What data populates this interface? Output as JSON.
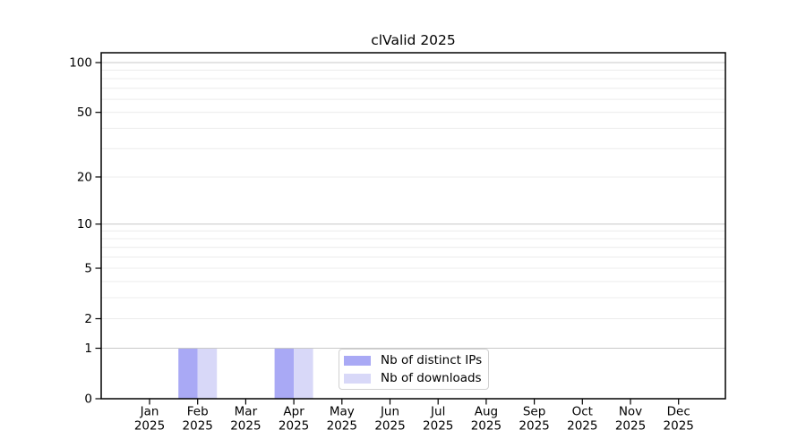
{
  "title": "clValid 2025",
  "chart_data": {
    "type": "bar",
    "title": "clValid 2025",
    "categories": [
      "Jan 2025",
      "Feb 2025",
      "Mar 2025",
      "Apr 2025",
      "May 2025",
      "Jun 2025",
      "Jul 2025",
      "Aug 2025",
      "Sep 2025",
      "Oct 2025",
      "Nov 2025",
      "Dec 2025"
    ],
    "series": [
      {
        "name": "Nb of distinct IPs",
        "color": "#a9a9f5",
        "values": [
          0,
          1,
          0,
          1,
          0,
          0,
          0,
          0,
          0,
          0,
          0,
          0
        ]
      },
      {
        "name": "Nb of downloads",
        "color": "#d8d8f8",
        "values": [
          0,
          1,
          0,
          1,
          0,
          0,
          0,
          0,
          0,
          0,
          0,
          0
        ]
      }
    ],
    "xlabel": "",
    "ylabel": "",
    "yscale": "log1p",
    "ylim": [
      0,
      100
    ],
    "y_major_ticks": [
      0,
      1,
      2,
      5,
      10,
      20,
      50,
      100
    ],
    "y_decade_gridlines": [
      1,
      10,
      100
    ],
    "y_minor_gridlines": [
      2,
      3,
      4,
      5,
      6,
      7,
      8,
      9,
      20,
      30,
      40,
      50,
      60,
      70,
      80,
      90
    ],
    "grid": true,
    "legend_position": "inside-bottom-center"
  },
  "colors": {
    "spine": "#000000",
    "decade_grid": "#c8c8c8",
    "minor_grid": "#ececec",
    "background": "#ffffff"
  }
}
